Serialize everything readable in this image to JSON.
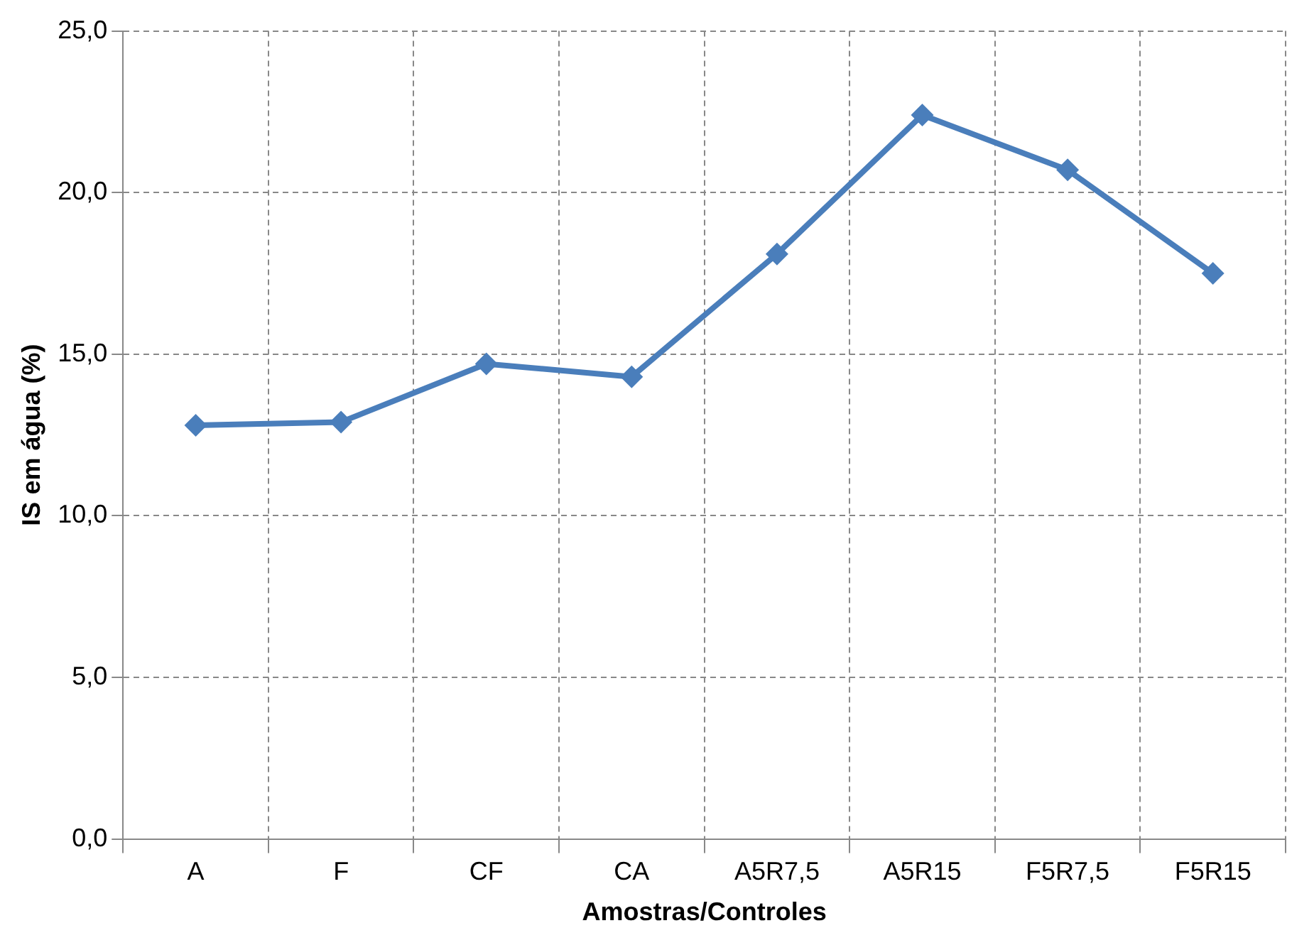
{
  "chart_data": {
    "type": "line",
    "xlabel": "Amostras/Controles",
    "ylabel": "IS em água (%)",
    "categories": [
      "A",
      "F",
      "CF",
      "CA",
      "A5R7,5",
      "A5R15",
      "F5R7,5",
      "F5R15"
    ],
    "series": [
      {
        "color": "#4a7ebb",
        "values": [
          12.8,
          12.9,
          14.7,
          14.3,
          18.1,
          22.4,
          20.7,
          17.5
        ]
      }
    ],
    "ylim": [
      0,
      25
    ],
    "yticks": [
      {
        "value": 0,
        "label": "0,0"
      },
      {
        "value": 5,
        "label": "5,0"
      },
      {
        "value": 10,
        "label": "10,0"
      },
      {
        "value": 15,
        "label": "15,0"
      },
      {
        "value": 20,
        "label": "20,0"
      },
      {
        "value": 25,
        "label": "25,0"
      }
    ],
    "grid": true,
    "marker": "diamond",
    "line_style": "solid"
  }
}
